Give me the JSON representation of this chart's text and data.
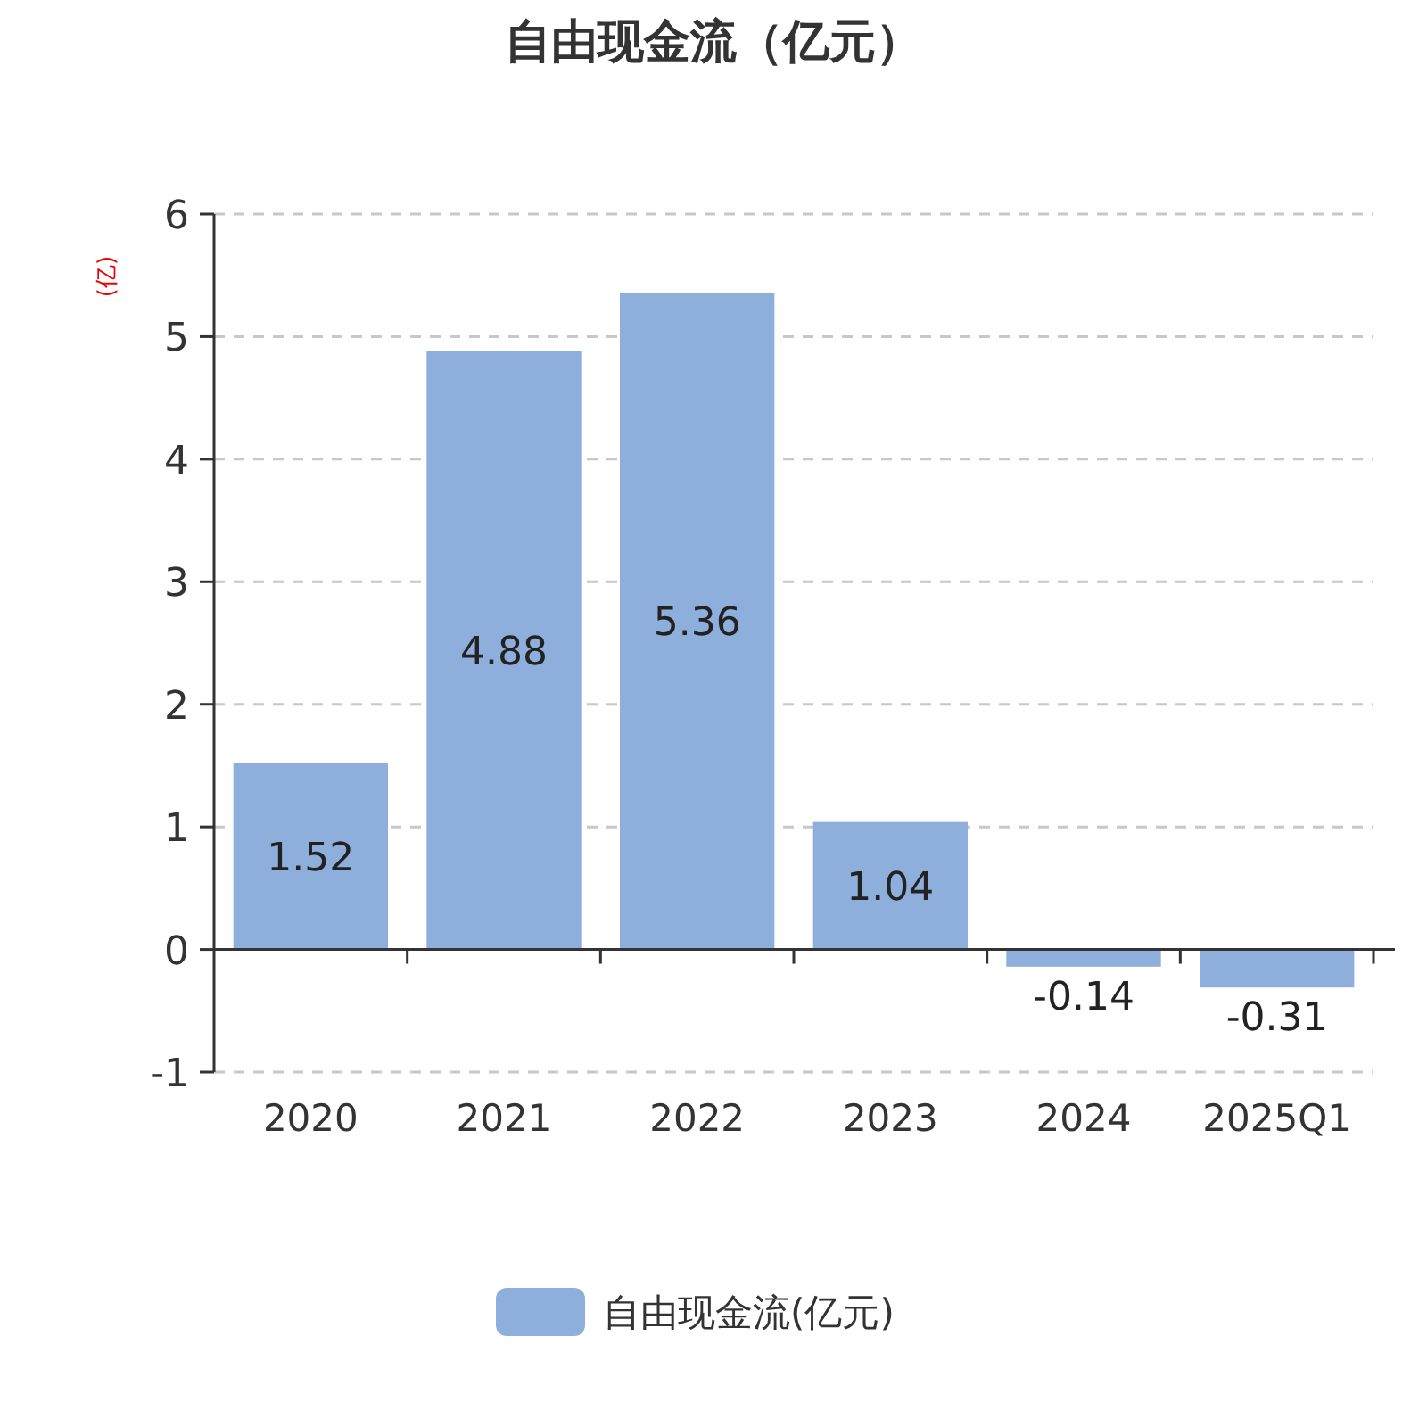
{
  "chart_data": {
    "type": "bar",
    "title": "自由现金流（亿元）",
    "ylabel": "(亿)",
    "categories": [
      "2020",
      "2021",
      "2022",
      "2023",
      "2024",
      "2025Q1"
    ],
    "series": [
      {
        "name": "自由现金流(亿元)",
        "color": "#8eaedb",
        "values": [
          1.52,
          4.88,
          5.36,
          1.04,
          -0.14,
          -0.31
        ]
      }
    ],
    "ylim": [
      -1,
      6
    ],
    "yticks": [
      -1,
      0,
      1,
      2,
      3,
      4,
      5,
      6
    ],
    "grid": "y",
    "data_labels": true,
    "legend": "bottom"
  }
}
